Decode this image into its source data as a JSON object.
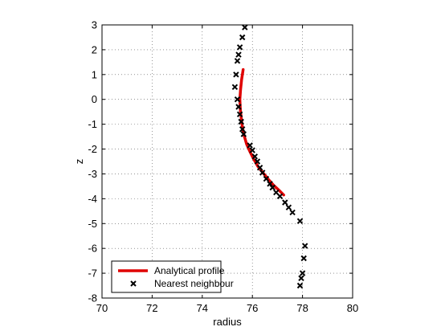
{
  "chart_data": {
    "type": "scatter",
    "xlabel": "radius",
    "ylabel": "z",
    "xlim": [
      70,
      80
    ],
    "ylim": [
      -8,
      3
    ],
    "xticks": [
      "70",
      "72",
      "74",
      "76",
      "78",
      "80"
    ],
    "yticks": [
      "3",
      "2",
      "1",
      "0",
      "-1",
      "-2",
      "-3",
      "-4",
      "-5",
      "-6",
      "-7",
      "-8"
    ],
    "grid": true,
    "legend_position": "bottom-left",
    "series": [
      {
        "name": "Analytical profile",
        "kind": "line",
        "color": "#e00000",
        "x": [
          75.63,
          75.57,
          75.53,
          75.5,
          75.52,
          75.56,
          75.6,
          75.67,
          75.77,
          75.9,
          76.05,
          76.22,
          76.42,
          76.62,
          76.84,
          77.05,
          77.25
        ],
        "y": [
          1.2,
          0.8,
          0.4,
          0.0,
          -0.4,
          -0.8,
          -1.1,
          -1.45,
          -1.8,
          -2.1,
          -2.4,
          -2.7,
          -2.95,
          -3.2,
          -3.45,
          -3.65,
          -3.85
        ]
      },
      {
        "name": "Nearest neighbour",
        "kind": "markers",
        "marker": "x",
        "color": "#000000",
        "x": [
          75.7,
          75.6,
          75.5,
          75.45,
          75.4,
          75.35,
          75.3,
          75.4,
          75.45,
          75.5,
          75.55,
          75.6,
          75.65,
          75.9,
          76.0,
          76.1,
          76.2,
          76.3,
          76.4,
          76.55,
          76.7,
          76.8,
          76.95,
          77.1,
          77.3,
          77.45,
          77.6,
          77.9,
          78.1,
          78.05,
          78.0,
          77.95,
          77.9
        ],
        "y": [
          2.9,
          2.5,
          2.1,
          1.8,
          1.55,
          1.0,
          0.5,
          0.0,
          -0.3,
          -0.6,
          -0.9,
          -1.2,
          -1.4,
          -1.85,
          -2.05,
          -2.3,
          -2.5,
          -2.75,
          -2.95,
          -3.2,
          -3.4,
          -3.55,
          -3.75,
          -3.9,
          -4.15,
          -4.35,
          -4.55,
          -4.9,
          -5.9,
          -6.4,
          -7.0,
          -7.2,
          -7.5
        ]
      }
    ]
  }
}
